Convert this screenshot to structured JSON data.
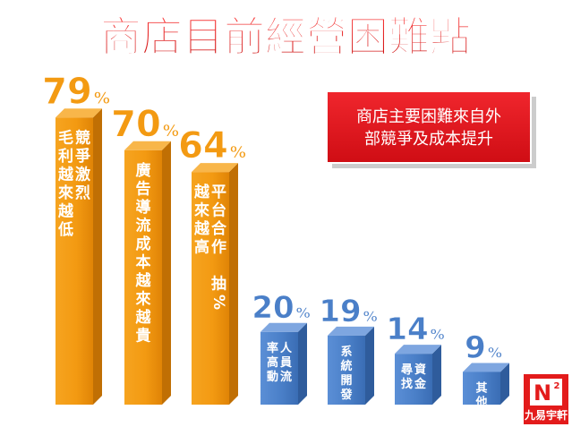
{
  "title": "商店目前經營困難點",
  "callout": {
    "line1": "商店主要困難來自外",
    "line2": "部競爭及成本提升"
  },
  "logo": {
    "mark": "N",
    "superscript": "2",
    "text": "九易宇軒"
  },
  "colors": {
    "orange": "#f39a12",
    "blue": "#4a7fc8",
    "title_red": "#e32222",
    "callout_red": "#e3141b"
  },
  "chart_data": {
    "type": "bar",
    "unit": "%",
    "categories": [
      [
        "競爭激烈",
        "毛利越來越低"
      ],
      [
        "廣告導流成本越來越貴"
      ],
      [
        "平台合作 抽%",
        "越來越高"
      ],
      [
        "人員流",
        "率高動"
      ],
      [
        "系統開發"
      ],
      [
        "資金",
        "尋找"
      ],
      [
        "其他"
      ]
    ],
    "values": [
      79,
      70,
      64,
      20,
      19,
      14,
      9
    ],
    "bar_colors": [
      "orange",
      "orange",
      "orange",
      "blue",
      "blue",
      "blue",
      "blue"
    ]
  }
}
